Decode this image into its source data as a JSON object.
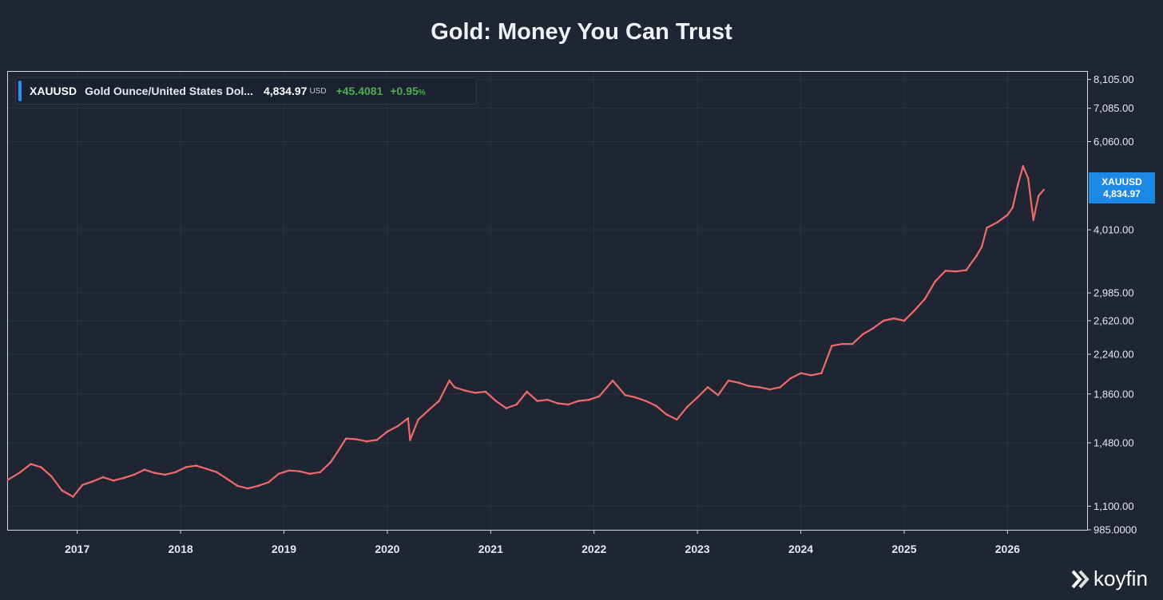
{
  "chart_data": {
    "type": "line",
    "title": "Gold: Money You Can Trust",
    "y_scale": "log",
    "ylim": [
      985,
      8400
    ],
    "xlim": [
      2016.33,
      2026.77
    ],
    "x_ticks": [
      2017,
      2018,
      2019,
      2020,
      2021,
      2022,
      2023,
      2024,
      2025,
      2026
    ],
    "x_tick_labels": [
      "2017",
      "2018",
      "2019",
      "2020",
      "2021",
      "2022",
      "2023",
      "2024",
      "2025",
      "2026"
    ],
    "y_ticks": [
      985,
      1100,
      1480,
      1860,
      2240,
      2620,
      2985,
      4010,
      6060,
      7085,
      8105
    ],
    "y_tick_labels": [
      "985.0000",
      "1,100.00",
      "1,480.00",
      "1,860.00",
      "2,240.00",
      "2,620.00",
      "2,985.00",
      "4,010.00",
      "6,060.00",
      "7,085.00",
      "8,105.00"
    ],
    "grid": true,
    "series": [
      {
        "name": "XAUUSD",
        "color": "#ef6b6b",
        "x": [
          2016.33,
          2016.45,
          2016.55,
          2016.65,
          2016.75,
          2016.85,
          2016.96,
          2017.05,
          2017.15,
          2017.25,
          2017.35,
          2017.45,
          2017.55,
          2017.65,
          2017.75,
          2017.85,
          2017.95,
          2018.05,
          2018.15,
          2018.25,
          2018.35,
          2018.45,
          2018.55,
          2018.65,
          2018.75,
          2018.85,
          2018.95,
          2019.05,
          2019.15,
          2019.25,
          2019.35,
          2019.45,
          2019.52,
          2019.6,
          2019.7,
          2019.8,
          2019.9,
          2020.0,
          2020.1,
          2020.2,
          2020.22,
          2020.3,
          2020.4,
          2020.5,
          2020.6,
          2020.65,
          2020.75,
          2020.85,
          2020.95,
          2021.05,
          2021.15,
          2021.25,
          2021.35,
          2021.45,
          2021.55,
          2021.65,
          2021.75,
          2021.85,
          2021.95,
          2022.05,
          2022.18,
          2022.3,
          2022.4,
          2022.5,
          2022.6,
          2022.7,
          2022.8,
          2022.9,
          2023.0,
          2023.1,
          2023.2,
          2023.3,
          2023.4,
          2023.5,
          2023.6,
          2023.7,
          2023.8,
          2023.9,
          2024.0,
          2024.1,
          2024.2,
          2024.3,
          2024.4,
          2024.5,
          2024.6,
          2024.7,
          2024.8,
          2024.9,
          2025.0,
          2025.1,
          2025.2,
          2025.3,
          2025.4,
          2025.5,
          2025.6,
          2025.7,
          2025.75,
          2025.8,
          2025.9,
          2026.0,
          2026.05,
          2026.1,
          2026.15,
          2026.2,
          2026.25,
          2026.3,
          2026.35
        ],
        "values": [
          1245,
          1290,
          1340,
          1320,
          1265,
          1185,
          1150,
          1215,
          1235,
          1260,
          1240,
          1255,
          1275,
          1305,
          1285,
          1275,
          1290,
          1320,
          1330,
          1310,
          1290,
          1250,
          1210,
          1195,
          1210,
          1230,
          1280,
          1300,
          1295,
          1280,
          1290,
          1350,
          1420,
          1510,
          1505,
          1490,
          1500,
          1560,
          1600,
          1660,
          1500,
          1650,
          1725,
          1800,
          1980,
          1920,
          1890,
          1870,
          1880,
          1800,
          1740,
          1770,
          1880,
          1800,
          1810,
          1780,
          1770,
          1800,
          1810,
          1840,
          1980,
          1850,
          1830,
          1800,
          1760,
          1690,
          1650,
          1750,
          1830,
          1920,
          1850,
          1980,
          1960,
          1930,
          1920,
          1900,
          1920,
          2000,
          2050,
          2030,
          2050,
          2330,
          2350,
          2350,
          2460,
          2530,
          2620,
          2650,
          2620,
          2750,
          2900,
          3150,
          3310,
          3300,
          3320,
          3550,
          3700,
          4050,
          4150,
          4300,
          4450,
          4950,
          5400,
          5100,
          4200,
          4700,
          4834.97
        ]
      }
    ]
  },
  "legend": {
    "ticker": "XAUUSD",
    "name": "Gold Ounce/United States Dol...",
    "price": "4,834.97",
    "currency": "USD",
    "change": "+45.4081",
    "change_pct": "+0.95",
    "pct_sign": "%"
  },
  "price_tag": {
    "ticker": "XAUUSD",
    "value": "4,834.97",
    "color": "#1e88e5"
  },
  "brand": {
    "name": "koyfin"
  },
  "colors": {
    "background": "#1f2533",
    "grid": "#2b3242",
    "series": "#ef6b6b",
    "positive": "#4caf50",
    "accent": "#2196f3"
  }
}
